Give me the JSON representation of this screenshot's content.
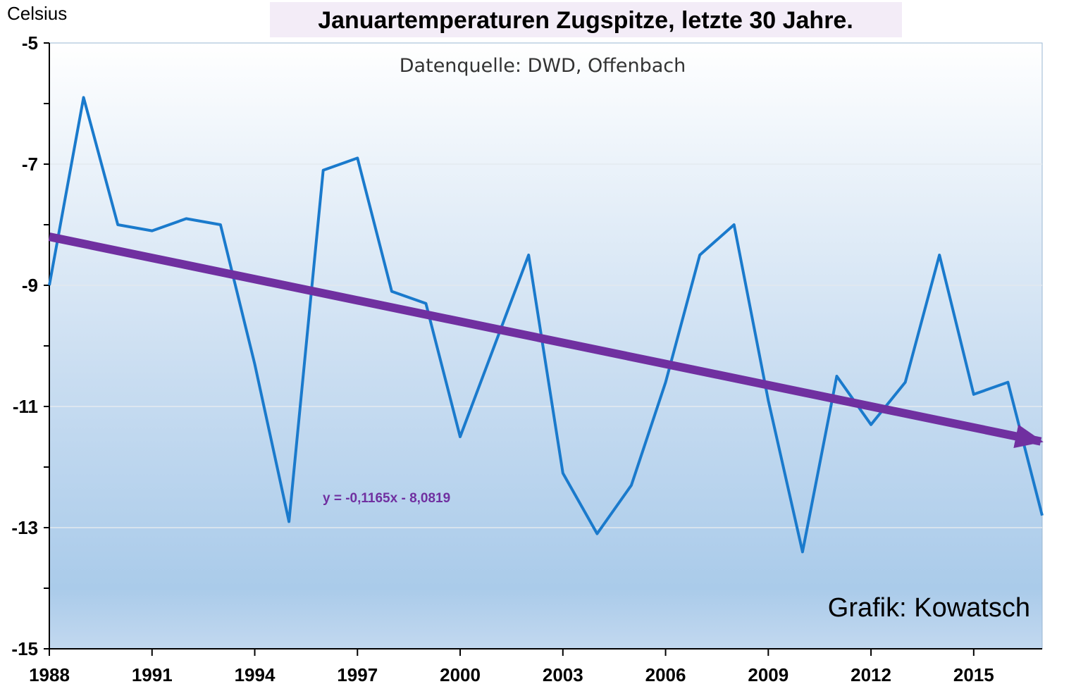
{
  "chart_data": {
    "type": "line",
    "title": "Januartemperaturen Zugspitze, letzte 30 Jahre.",
    "subtitle": "Datenquelle: DWD, Offenbach",
    "ylabel": "Celsius",
    "credit": "Grafik: Kowatsch",
    "ylim": [
      -15,
      -5
    ],
    "xlim": [
      1988,
      2017
    ],
    "y_ticks_labeled": [
      -5,
      -7,
      -9,
      -11,
      -13,
      -15
    ],
    "y_tick_step": 1,
    "y_gridlines": [
      -7,
      -9,
      -11,
      -13
    ],
    "x_ticks": [
      1988,
      1991,
      1994,
      1997,
      2000,
      2003,
      2006,
      2009,
      2012,
      2015
    ],
    "grid": "horizontal",
    "series": [
      {
        "x": [
          1988,
          1989,
          1990,
          1991,
          1992,
          1993,
          1994,
          1995,
          1996,
          1997,
          1998,
          1999,
          2000,
          2001,
          2002,
          2003,
          2004,
          2005,
          2006,
          2007,
          2008,
          2009,
          2010,
          2011,
          2012,
          2013,
          2014,
          2015,
          2016,
          2017
        ],
        "values": [
          -9.0,
          -5.9,
          -8.0,
          -8.1,
          -7.9,
          -8.0,
          -10.3,
          -12.9,
          -7.1,
          -6.9,
          -9.1,
          -9.3,
          -11.5,
          -10.0,
          -8.5,
          -12.1,
          -13.1,
          -12.3,
          -10.6,
          -8.5,
          -8.0,
          -10.9,
          -13.4,
          -10.5,
          -11.3,
          -10.6,
          -8.5,
          -10.8,
          -10.6,
          -12.8
        ],
        "color": "#1a7acc"
      }
    ],
    "trendline": {
      "equation": "y = -0,1165x - 8,0819",
      "slope": -0.1165,
      "intercept": -8.0819,
      "color": "#7030a0"
    },
    "colors": {
      "plot_bg_top": "#ffffff",
      "plot_bg_bottom": "#9ec3e6",
      "title_bg": "#f3ecf7"
    }
  }
}
